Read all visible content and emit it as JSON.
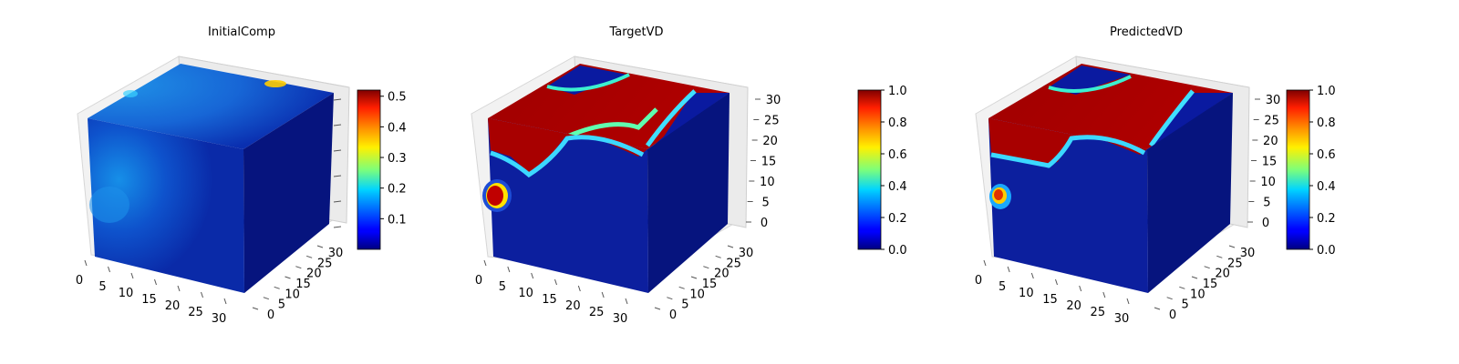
{
  "chart_data": [
    {
      "type": "voxel-3d",
      "title": "InitialComp",
      "x_ticks": [
        "0",
        "5",
        "10",
        "15",
        "20",
        "25",
        "30"
      ],
      "y_ticks": [
        "0",
        "5",
        "10",
        "15",
        "20",
        "25",
        "30"
      ],
      "z_ticks": [
        "",
        "",
        "",
        "",
        "",
        "",
        ""
      ],
      "colormap": "jet",
      "colorbar": {
        "min": 0.0,
        "max": 0.52,
        "ticks": [
          "0.1",
          "0.2",
          "0.3",
          "0.4",
          "0.5"
        ],
        "tick_values": [
          0.1,
          0.2,
          0.3,
          0.4,
          0.5
        ]
      }
    },
    {
      "type": "voxel-3d",
      "title": "TargetVD",
      "x_ticks": [
        "0",
        "5",
        "10",
        "15",
        "20",
        "25",
        "30"
      ],
      "y_ticks": [
        "0",
        "5",
        "10",
        "15",
        "20",
        "25",
        "30"
      ],
      "z_ticks": [
        "0",
        "5",
        "10",
        "15",
        "20",
        "25",
        "30"
      ],
      "colormap": "jet",
      "colorbar": {
        "min": 0.0,
        "max": 1.0,
        "ticks": [
          "0.0",
          "0.2",
          "0.4",
          "0.6",
          "0.8",
          "1.0"
        ],
        "tick_values": [
          0,
          0.2,
          0.4,
          0.6,
          0.8,
          1.0
        ]
      }
    },
    {
      "type": "voxel-3d",
      "title": "PredictedVD",
      "x_ticks": [
        "0",
        "5",
        "10",
        "15",
        "20",
        "25",
        "30"
      ],
      "y_ticks": [
        "0",
        "5",
        "10",
        "15",
        "20",
        "25",
        "30"
      ],
      "z_ticks": [
        "0",
        "5",
        "10",
        "15",
        "20",
        "25",
        "30"
      ],
      "colormap": "jet",
      "colorbar": {
        "min": 0.0,
        "max": 1.0,
        "ticks": [
          "0.0",
          "0.2",
          "0.4",
          "0.6",
          "0.8",
          "1.0"
        ],
        "tick_values": [
          0,
          0.2,
          0.4,
          0.6,
          0.8,
          1.0
        ]
      }
    }
  ]
}
